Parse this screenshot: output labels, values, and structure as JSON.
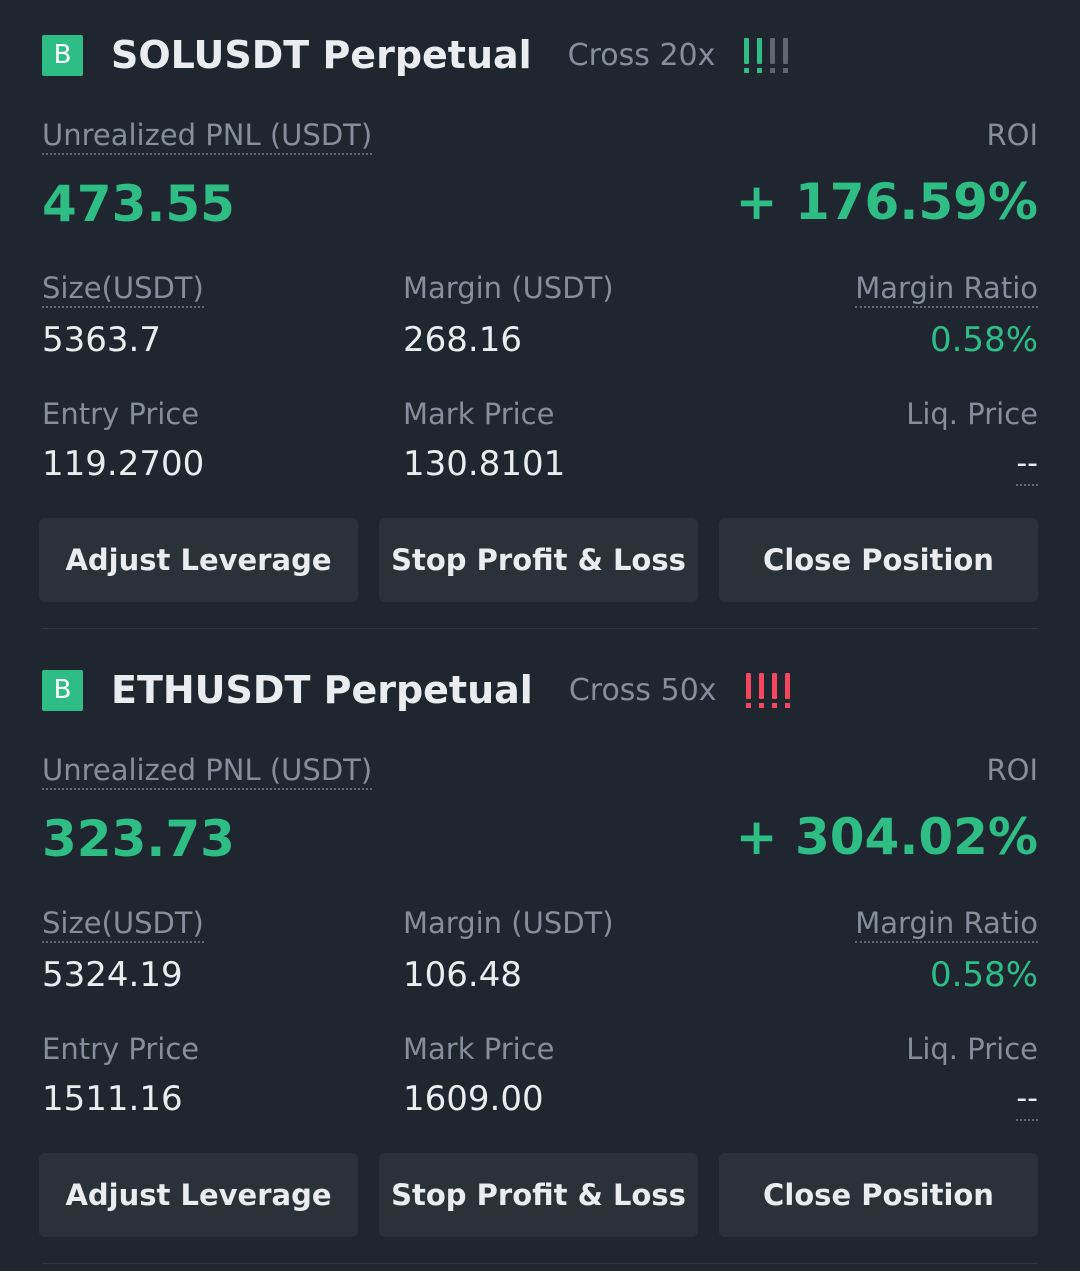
{
  "positions": [
    {
      "side_badge": "B",
      "symbol": "SOLUSDT Perpetual",
      "leverage": "Cross 20x",
      "risk_level": 2,
      "risk_color": "#2ebd85",
      "unrealized_pnl_label": "Unrealized PNL (USDT)",
      "unrealized_pnl": "473.55",
      "roi_label": "ROI",
      "roi": "+ 176.59%",
      "size_label": "Size(USDT)",
      "size": "5363.7",
      "margin_label": "Margin (USDT)",
      "margin": "268.16",
      "margin_ratio_label": "Margin Ratio",
      "margin_ratio": "0.58%",
      "entry_price_label": "Entry Price",
      "entry_price": "119.2700",
      "mark_price_label": "Mark Price",
      "mark_price": "130.8101",
      "liq_price_label": "Liq. Price",
      "liq_price": "--",
      "buttons": {
        "adjust_leverage": "Adjust Leverage",
        "stop_profit_loss": "Stop Profit & Loss",
        "close_position": "Close Position"
      }
    },
    {
      "side_badge": "B",
      "symbol": "ETHUSDT Perpetual",
      "leverage": "Cross 50x",
      "risk_level": 4,
      "risk_color": "#f6465d",
      "unrealized_pnl_label": "Unrealized PNL (USDT)",
      "unrealized_pnl": "323.73",
      "roi_label": "ROI",
      "roi": "+ 304.02%",
      "size_label": "Size(USDT)",
      "size": "5324.19",
      "margin_label": "Margin (USDT)",
      "margin": "106.48",
      "margin_ratio_label": "Margin Ratio",
      "margin_ratio": "0.58%",
      "entry_price_label": "Entry Price",
      "entry_price": "1511.16",
      "mark_price_label": "Mark Price",
      "mark_price": "1609.00",
      "liq_price_label": "Liq. Price",
      "liq_price": "--",
      "buttons": {
        "adjust_leverage": "Adjust Leverage",
        "stop_profit_loss": "Stop Profit & Loss",
        "close_position": "Close Position"
      }
    }
  ],
  "colors": {
    "positive": "#2ebd85",
    "danger": "#f6465d",
    "inactive_bar": "#5e6673",
    "background": "#1f2630",
    "button": "#2b3139"
  }
}
